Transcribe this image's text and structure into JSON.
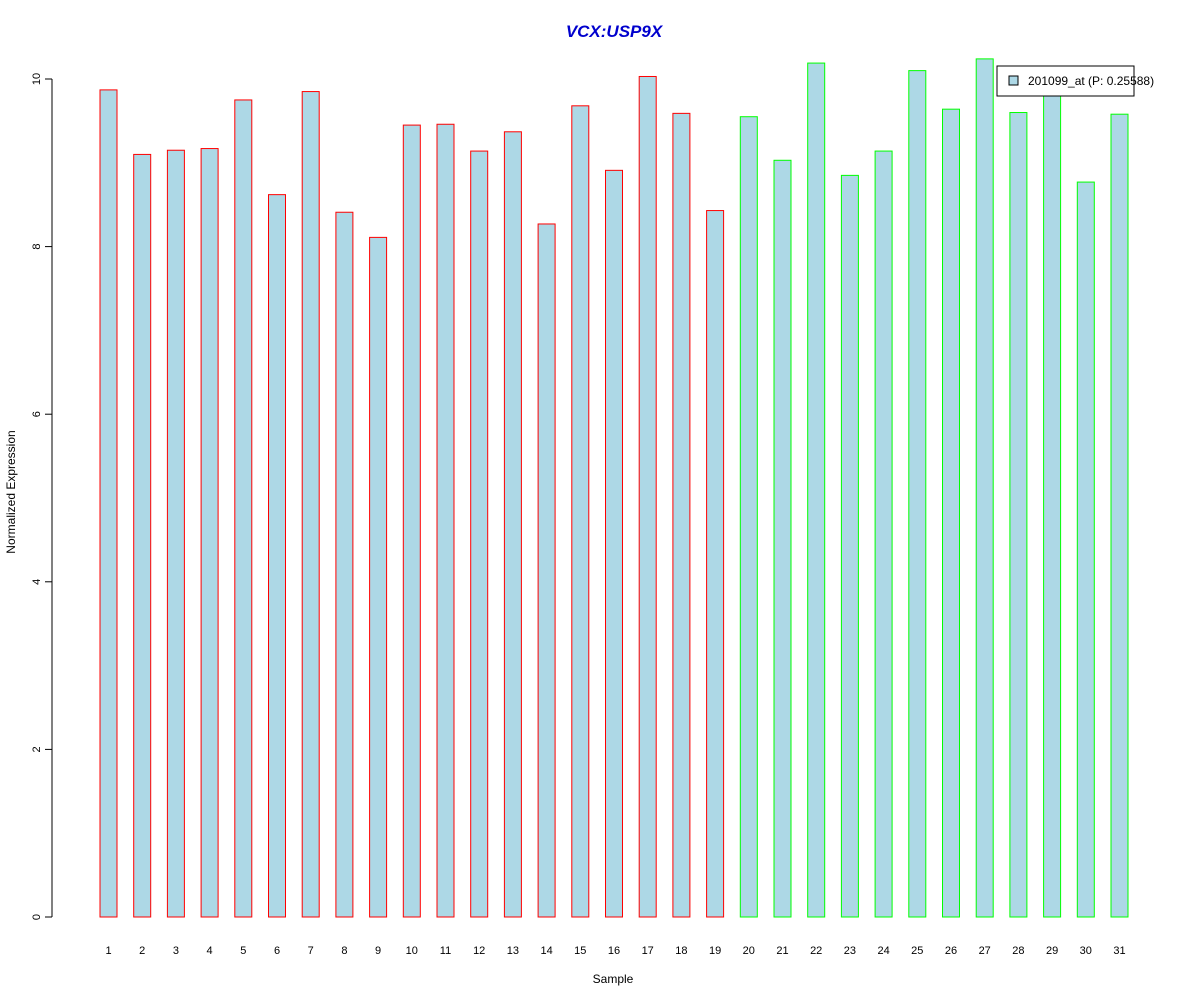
{
  "chart_data": {
    "type": "bar",
    "title": "VCX:USP9X",
    "xlabel": "Sample",
    "ylabel": "Normalized Expression",
    "ylim": [
      0,
      10.25
    ],
    "yticks": [
      0,
      2,
      4,
      6,
      8,
      10
    ],
    "grid": false,
    "legend_position": "top-right",
    "bar_fill": "#add8e6",
    "title_color": "#0000cd",
    "categories": [
      "1",
      "2",
      "3",
      "4",
      "5",
      "6",
      "7",
      "8",
      "9",
      "10",
      "11",
      "12",
      "13",
      "14",
      "15",
      "16",
      "17",
      "18",
      "19",
      "20",
      "21",
      "22",
      "23",
      "24",
      "25",
      "26",
      "27",
      "28",
      "29",
      "30",
      "31"
    ],
    "values": [
      9.87,
      9.1,
      9.15,
      9.17,
      9.75,
      8.62,
      9.85,
      8.41,
      8.11,
      9.45,
      9.46,
      9.14,
      9.37,
      8.27,
      9.68,
      8.91,
      10.03,
      9.59,
      8.43,
      9.55,
      9.03,
      10.19,
      8.85,
      9.14,
      10.1,
      9.64,
      10.24,
      9.6,
      9.83,
      8.77,
      9.58
    ],
    "groups": [
      {
        "color": "#ff0000",
        "samples": [
          "1",
          "2",
          "3",
          "4",
          "5",
          "6",
          "7",
          "8",
          "9",
          "10",
          "11",
          "12",
          "13",
          "14",
          "15",
          "16",
          "17",
          "18",
          "19"
        ]
      },
      {
        "color": "#00ff00",
        "samples": [
          "20",
          "21",
          "22",
          "23",
          "24",
          "25",
          "26",
          "27",
          "28",
          "29",
          "30",
          "31"
        ]
      }
    ],
    "series": [
      {
        "name": "201099_at (P: 0.25588)",
        "values": [
          9.87,
          9.1,
          9.15,
          9.17,
          9.75,
          8.62,
          9.85,
          8.41,
          8.11,
          9.45,
          9.46,
          9.14,
          9.37,
          8.27,
          9.68,
          8.91,
          10.03,
          9.59,
          8.43,
          9.55,
          9.03,
          10.19,
          8.85,
          9.14,
          10.1,
          9.64,
          10.24,
          9.6,
          9.83,
          8.77,
          9.58
        ]
      }
    ]
  }
}
